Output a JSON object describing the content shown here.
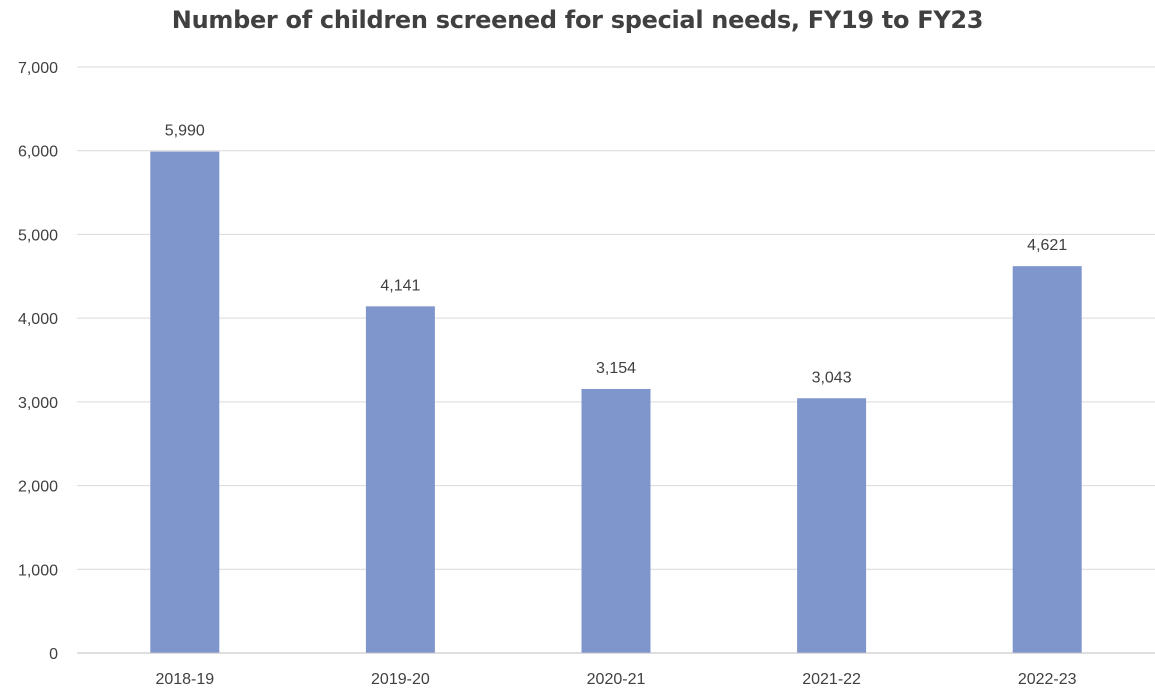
{
  "chart_data": {
    "type": "bar",
    "title": "Number of children screened for special needs, FY19 to FY23",
    "categories": [
      "2018-19",
      "2019-20",
      "2020-21",
      "2021-22",
      "2022-23"
    ],
    "values": [
      5990,
      4141,
      3154,
      3043,
      4621
    ],
    "data_labels": [
      "5,990",
      "4,141",
      "3,154",
      "3,043",
      "4,621"
    ],
    "xlabel": "",
    "ylabel": "",
    "ylim": [
      0,
      7000
    ],
    "y_ticks": [
      0,
      1000,
      2000,
      3000,
      4000,
      5000,
      6000,
      7000
    ],
    "y_tick_labels": [
      "0",
      "1,000",
      "2,000",
      "3,000",
      "4,000",
      "5,000",
      "6,000",
      "7,000"
    ],
    "grid": true,
    "legend": "none",
    "bar_color": "#7f96cc"
  }
}
